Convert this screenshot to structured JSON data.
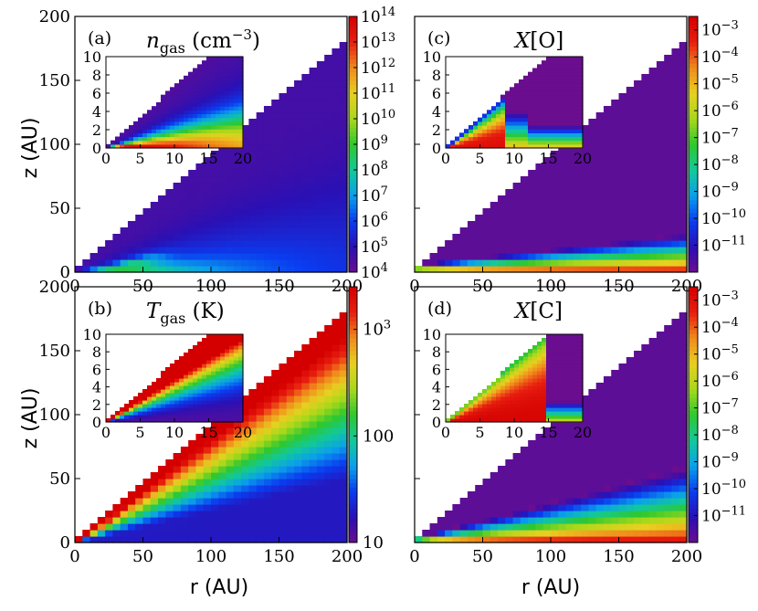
{
  "figure": {
    "xlabel": "r (AU)",
    "ylabel": "z (AU)"
  },
  "colormap": [
    "#6a0d8f",
    "#2a10b5",
    "#0a3cf0",
    "#0aa0ea",
    "#12c99a",
    "#2ec82e",
    "#a8d81a",
    "#e8d020",
    "#f08a1c",
    "#e81e10",
    "#d40000"
  ],
  "chart_data": [
    {
      "id": "a",
      "type": "heatmap",
      "panel_label": "(a)",
      "title": "n",
      "title_sub": "gas",
      "title_tail": " (cm",
      "title_sup": "−3",
      "title_end": ")",
      "quantity": "gas number density",
      "xlim": [
        0,
        200
      ],
      "ylim": [
        0,
        200
      ],
      "xticks": [
        "0",
        "50",
        "100",
        "150",
        "200"
      ],
      "yticks": [
        "0",
        "50",
        "100",
        "150",
        "200"
      ],
      "colorbar": {
        "scale": "log",
        "range": [
          4,
          14
        ],
        "tick_base": "10",
        "tick_exponents": [
          "4",
          "5",
          "6",
          "7",
          "8",
          "9",
          "10",
          "11",
          "12",
          "13",
          "14"
        ]
      },
      "inset": {
        "xlim": [
          0,
          20
        ],
        "ylim": [
          0,
          10
        ],
        "xticks": [
          "0",
          "5",
          "10",
          "15",
          "20"
        ],
        "yticks": [
          "0",
          "2",
          "4",
          "6",
          "8",
          "10"
        ]
      }
    },
    {
      "id": "b",
      "type": "heatmap",
      "panel_label": "(b)",
      "title": "T",
      "title_sub": "gas",
      "title_tail": " (K)",
      "title_sup": "",
      "title_end": "",
      "quantity": "gas temperature",
      "xlim": [
        0,
        200
      ],
      "ylim": [
        0,
        200
      ],
      "xticks": [
        "0",
        "50",
        "100",
        "150",
        "200"
      ],
      "yticks": [
        "0",
        "50",
        "100",
        "150",
        "200"
      ],
      "colorbar": {
        "scale": "log",
        "range": [
          1,
          3.4
        ],
        "ticks": [
          {
            "value": 10,
            "label": "10"
          },
          {
            "value": 100,
            "label": "100"
          },
          {
            "value": 1000,
            "label_base": "10",
            "label_sup": "3"
          }
        ]
      },
      "inset": {
        "xlim": [
          0,
          20
        ],
        "ylim": [
          0,
          10
        ],
        "xticks": [
          "0",
          "5",
          "10",
          "15",
          "20"
        ],
        "yticks": [
          "0",
          "2",
          "4",
          "6",
          "8",
          "10"
        ]
      }
    },
    {
      "id": "c",
      "type": "heatmap",
      "panel_label": "(c)",
      "title": "X[O]",
      "quantity": "atomic oxygen abundance",
      "xlim": [
        0,
        200
      ],
      "ylim": [
        0,
        200
      ],
      "xticks": [
        "0",
        "50",
        "100",
        "150",
        "200"
      ],
      "yticks": [],
      "colorbar": {
        "scale": "log",
        "range": [
          -12,
          -2.5
        ],
        "tick_base": "10",
        "tick_exponents": [
          "−3",
          "−4",
          "−5",
          "−6",
          "−7",
          "−8",
          "−9",
          "−10",
          "−11"
        ]
      },
      "inset": {
        "xlim": [
          0,
          20
        ],
        "ylim": [
          0,
          10
        ],
        "xticks": [
          "0",
          "5",
          "10",
          "15",
          "20"
        ],
        "yticks": [
          "0",
          "2",
          "4",
          "6",
          "8",
          "10"
        ]
      }
    },
    {
      "id": "d",
      "type": "heatmap",
      "panel_label": "(d)",
      "title": "X[C]",
      "quantity": "atomic carbon abundance",
      "xlim": [
        0,
        200
      ],
      "ylim": [
        0,
        200
      ],
      "xticks": [
        "0",
        "50",
        "100",
        "150",
        "200"
      ],
      "yticks": [],
      "colorbar": {
        "scale": "log",
        "range": [
          -12,
          -2.5
        ],
        "tick_base": "10",
        "tick_exponents": [
          "−3",
          "−4",
          "−5",
          "−6",
          "−7",
          "−8",
          "−9",
          "−10",
          "−11"
        ]
      },
      "inset": {
        "xlim": [
          0,
          20
        ],
        "ylim": [
          0,
          10
        ],
        "xticks": [
          "0",
          "5",
          "10",
          "15",
          "20"
        ],
        "yticks": [
          "0",
          "2",
          "4",
          "6",
          "8",
          "10"
        ]
      }
    }
  ]
}
